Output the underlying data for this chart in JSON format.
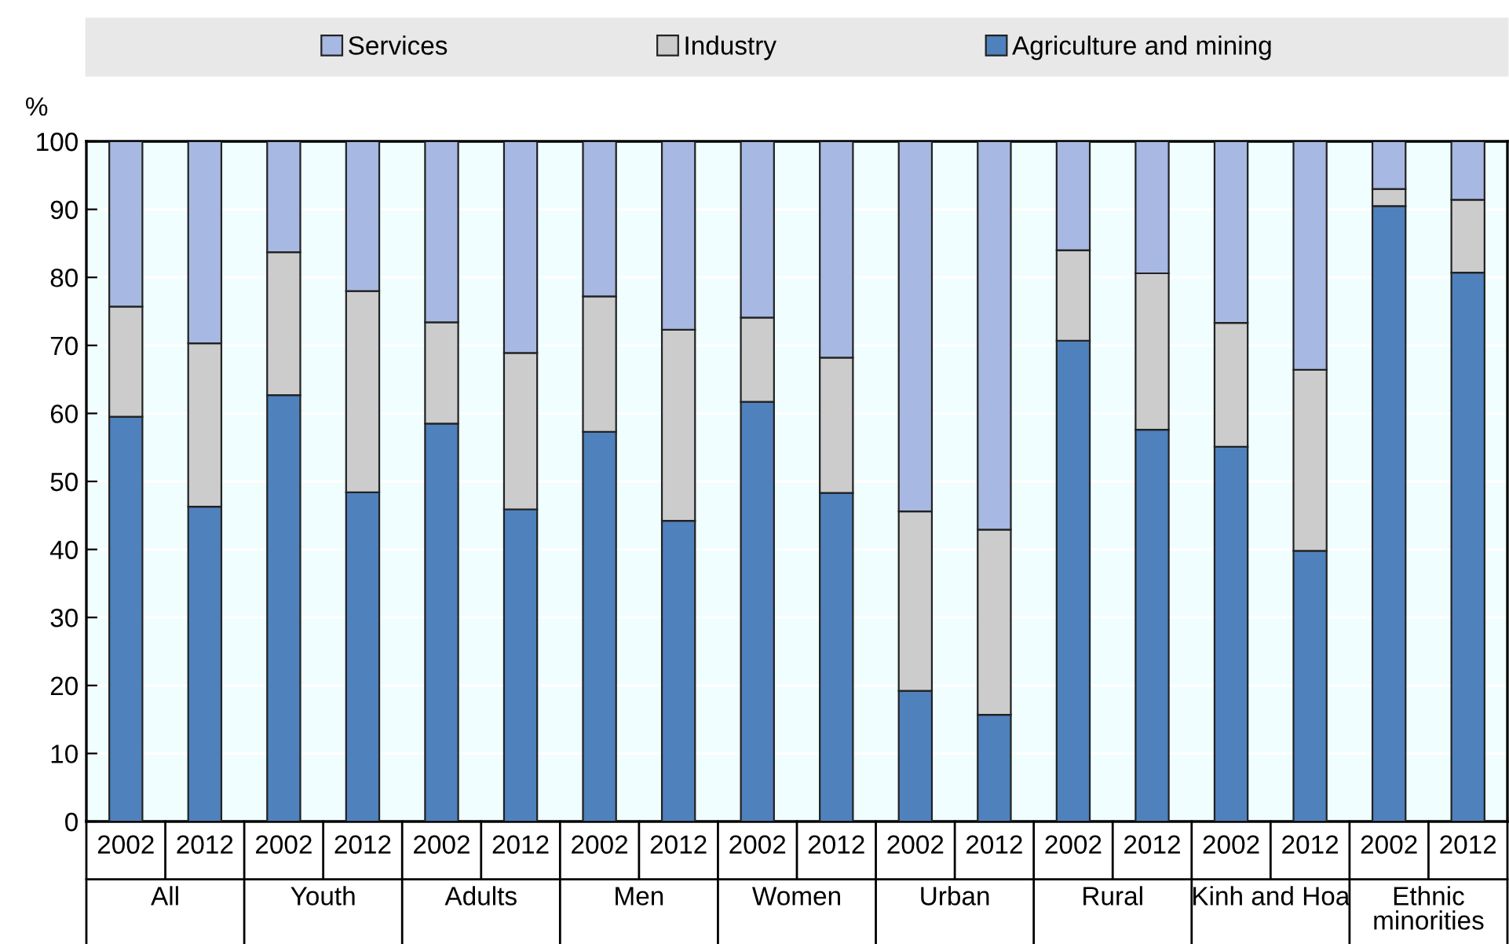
{
  "chart_data": {
    "type": "bar",
    "stacked": true,
    "ylabel": "%",
    "categories": [
      "2002",
      "2012",
      "2002",
      "2012",
      "2002",
      "2012",
      "2002",
      "2012",
      "2002",
      "2012",
      "2002",
      "2012",
      "2002",
      "2012",
      "2002",
      "2012",
      "2002",
      "2012"
    ],
    "annotations": [
      "All",
      "Youth",
      "Adults",
      "Men",
      "Women",
      "Urban",
      "Rural",
      "Kinh and Hoa",
      "Ethnic\nminorities"
    ],
    "series": [
      {
        "name": "Agriculture and mining",
        "color": "#4f81bd",
        "values": [
          59.5,
          46.3,
          62.7,
          48.4,
          58.5,
          45.9,
          57.3,
          44.2,
          61.7,
          48.3,
          19.2,
          15.7,
          70.7,
          57.6,
          55.1,
          39.8,
          90.5,
          80.7
        ]
      },
      {
        "name": "Industry",
        "color": "#cccccc",
        "values": [
          16.2,
          24.0,
          21.0,
          29.6,
          14.9,
          23.0,
          19.9,
          28.1,
          12.4,
          19.9,
          26.4,
          27.2,
          13.3,
          23.0,
          18.2,
          26.6,
          2.5,
          10.7
        ]
      },
      {
        "name": "Services",
        "color": "#a7b8e2",
        "values": [
          24.3,
          29.7,
          16.3,
          22.0,
          26.6,
          31.1,
          22.8,
          27.7,
          25.9,
          31.8,
          54.4,
          57.1,
          16.0,
          19.4,
          26.7,
          33.6,
          7.0,
          8.6
        ]
      }
    ],
    "ylim": [
      0,
      100
    ],
    "yticks": [
      0,
      10,
      20,
      30,
      40,
      50,
      60,
      70,
      80,
      90,
      100
    ],
    "grid": "y",
    "legend": "top"
  }
}
